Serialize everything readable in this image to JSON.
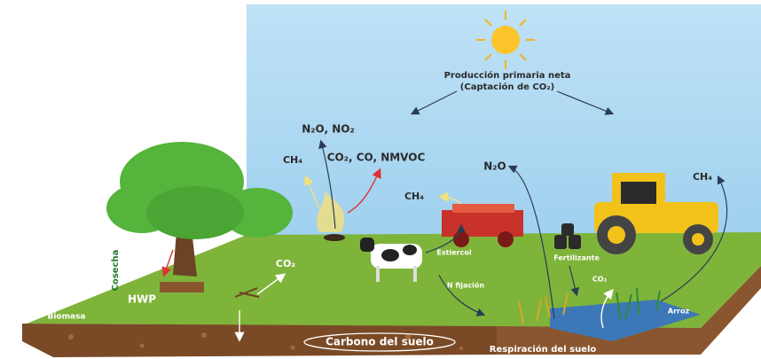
{
  "labels": [
    "Producción primaria neta",
    "(Captación de CO₂)",
    "N₂O, NO₂",
    "CH₄",
    "CO₂, CO, NMVOC",
    "CH₄",
    "N₂O",
    "CH₄",
    "Cosecha",
    "HWP",
    "Biomasa",
    "CO₂",
    "Estiercol",
    "N fijación",
    "Fertilizante",
    "CO₂",
    "Arroz",
    "Carbono del suelo",
    "Respiración del suelo"
  ]
}
